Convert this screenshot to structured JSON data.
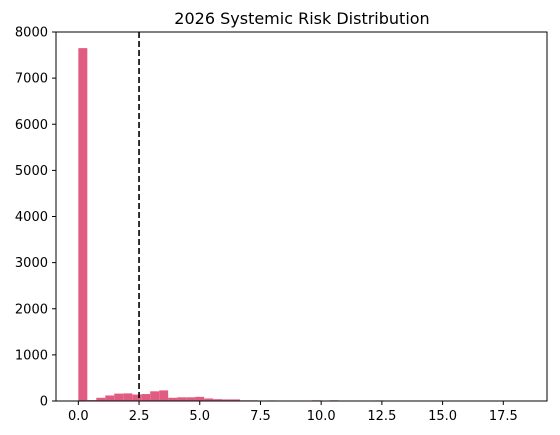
{
  "chart_data": {
    "type": "bar",
    "title": "2026 Systemic Risk Distribution",
    "xlabel": "",
    "ylabel": "",
    "xlim": [
      -0.92,
      19.3
    ],
    "ylim": [
      0,
      8000
    ],
    "x_ticks": [
      0.0,
      2.5,
      5.0,
      7.5,
      10.0,
      12.5,
      15.0,
      17.5
    ],
    "x_tick_labels": [
      "0.0",
      "2.5",
      "5.0",
      "7.5",
      "10.0",
      "12.5",
      "15.0",
      "17.5"
    ],
    "y_ticks": [
      0,
      1000,
      2000,
      3000,
      4000,
      5000,
      6000,
      7000,
      8000
    ],
    "y_tick_labels": [
      "0",
      "1000",
      "2000",
      "3000",
      "4000",
      "5000",
      "6000",
      "7000",
      "8000"
    ],
    "bin_width": 0.37,
    "bin_starts": [
      0.0,
      0.37,
      0.74,
      1.11,
      1.48,
      1.85,
      2.22,
      2.59,
      2.96,
      3.33,
      3.7,
      4.07,
      4.44,
      4.81,
      5.18,
      5.55,
      5.92,
      6.29,
      6.66,
      7.03,
      7.4,
      7.77,
      8.14,
      8.51,
      8.88,
      9.25,
      9.62,
      9.99,
      10.36,
      10.73,
      11.1,
      11.47,
      11.84,
      12.21,
      12.58,
      12.95,
      13.32,
      13.69,
      14.06,
      14.43,
      14.8,
      15.17,
      15.54,
      15.91,
      16.28,
      16.65,
      17.02,
      17.39,
      17.76,
      18.13
    ],
    "values": [
      7650,
      20,
      70,
      120,
      160,
      165,
      140,
      150,
      210,
      230,
      70,
      80,
      80,
      90,
      55,
      40,
      35,
      35,
      15,
      15,
      10,
      12,
      8,
      5,
      6,
      5,
      15,
      8,
      15,
      10,
      3,
      3,
      3,
      12,
      3,
      2,
      2,
      2,
      2,
      2,
      2,
      2,
      2,
      2,
      2,
      2,
      2,
      2,
      2,
      2
    ],
    "bar_color": "#e05c80",
    "reference_line": {
      "x": 2.5,
      "style": "dashed",
      "color": "#000000"
    },
    "grid": false,
    "legend": "none"
  }
}
